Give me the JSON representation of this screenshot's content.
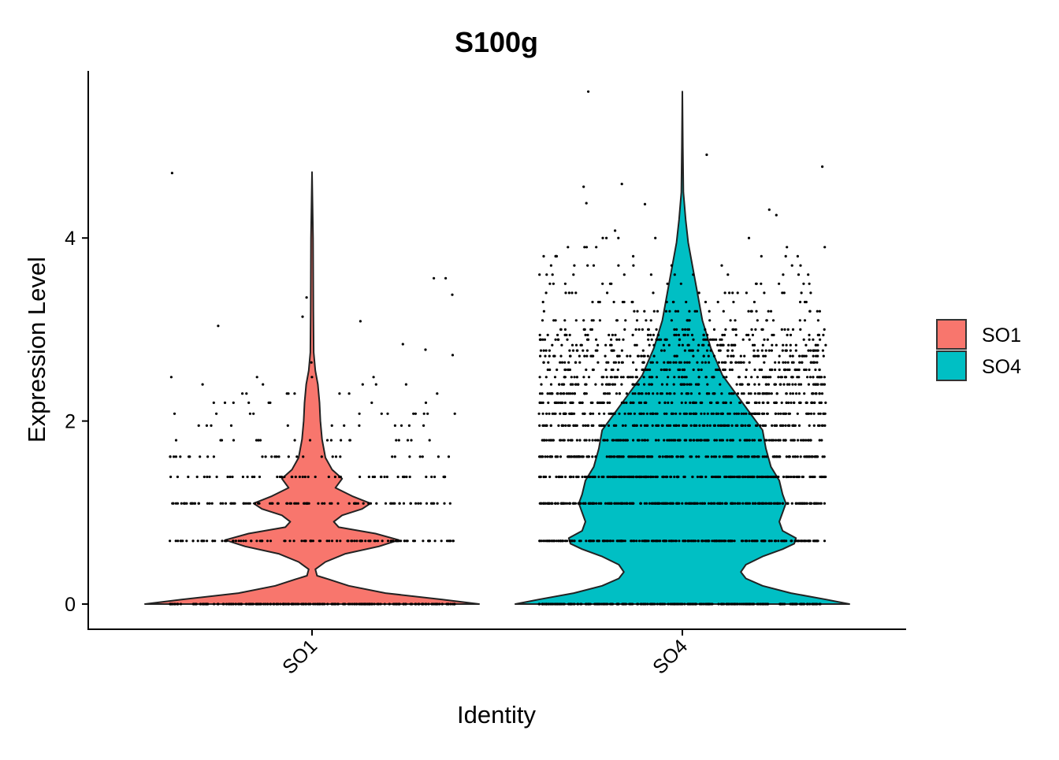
{
  "chart_data": {
    "type": "violin",
    "title": "S100g",
    "xlabel": "Identity",
    "ylabel": "Expression Level",
    "ylim": [
      -0.28,
      5.75
    ],
    "y_ticks": [
      0,
      2,
      4
    ],
    "categories": [
      "SO1",
      "SO4"
    ],
    "legend": {
      "position": "right",
      "entries": [
        {
          "label": "SO1",
          "color": "#F8766D"
        },
        {
          "label": "SO4",
          "color": "#00BFC4"
        }
      ]
    },
    "grid": false,
    "jittered_points": true,
    "series": [
      {
        "name": "SO1",
        "color": "#F8766D",
        "density": [
          [
            0.0,
            1.0
          ],
          [
            0.05,
            0.78
          ],
          [
            0.12,
            0.44
          ],
          [
            0.2,
            0.22
          ],
          [
            0.27,
            0.1
          ],
          [
            0.31,
            0.03
          ],
          [
            0.38,
            0.02
          ],
          [
            0.46,
            0.08
          ],
          [
            0.55,
            0.2
          ],
          [
            0.63,
            0.4
          ],
          [
            0.7,
            0.52
          ],
          [
            0.77,
            0.38
          ],
          [
            0.84,
            0.16
          ],
          [
            0.9,
            0.13
          ],
          [
            0.97,
            0.18
          ],
          [
            1.04,
            0.3
          ],
          [
            1.1,
            0.35
          ],
          [
            1.18,
            0.24
          ],
          [
            1.27,
            0.14
          ],
          [
            1.37,
            0.18
          ],
          [
            1.47,
            0.12
          ],
          [
            1.6,
            0.08
          ],
          [
            1.8,
            0.06
          ],
          [
            2.0,
            0.05
          ],
          [
            2.2,
            0.045
          ],
          [
            2.4,
            0.035
          ],
          [
            2.55,
            0.02
          ],
          [
            2.75,
            0.01
          ],
          [
            3.2,
            0.008
          ],
          [
            4.0,
            0.006
          ],
          [
            4.72,
            0.0
          ]
        ],
        "points": {
          "0": 230,
          "0.69": 110,
          "1.1": 90,
          "1.39": 55,
          "1.61": 30,
          "1.79": 20,
          "1.95": 12,
          "2.08": 12,
          "2.2": 8,
          "2.3": 8,
          "2.4": 5,
          "2.48": 4,
          "other": [
            2.64,
            2.72,
            2.78,
            2.84,
            3.04,
            3.09,
            3.14,
            3.35,
            3.38,
            3.56,
            3.56,
            4.71
          ]
        }
      },
      {
        "name": "SO4",
        "color": "#00BFC4",
        "density": [
          [
            0.0,
            1.0
          ],
          [
            0.05,
            0.86
          ],
          [
            0.12,
            0.65
          ],
          [
            0.2,
            0.48
          ],
          [
            0.28,
            0.38
          ],
          [
            0.35,
            0.35
          ],
          [
            0.43,
            0.38
          ],
          [
            0.52,
            0.48
          ],
          [
            0.6,
            0.6
          ],
          [
            0.66,
            0.67
          ],
          [
            0.72,
            0.68
          ],
          [
            0.8,
            0.6
          ],
          [
            0.9,
            0.58
          ],
          [
            1.0,
            0.6
          ],
          [
            1.1,
            0.62
          ],
          [
            1.2,
            0.6
          ],
          [
            1.35,
            0.58
          ],
          [
            1.5,
            0.53
          ],
          [
            1.7,
            0.5
          ],
          [
            1.9,
            0.48
          ],
          [
            2.1,
            0.4
          ],
          [
            2.3,
            0.32
          ],
          [
            2.5,
            0.24
          ],
          [
            2.8,
            0.17
          ],
          [
            3.1,
            0.12
          ],
          [
            3.4,
            0.09
          ],
          [
            3.7,
            0.06
          ],
          [
            3.95,
            0.035
          ],
          [
            4.2,
            0.02
          ],
          [
            4.5,
            0.006
          ],
          [
            5.0,
            0.003
          ],
          [
            5.6,
            0.0
          ]
        ],
        "points": {
          "0": 260,
          "0.69": 240,
          "1.1": 240,
          "1.39": 200,
          "1.61": 175,
          "1.79": 150,
          "1.95": 130,
          "2.08": 130,
          "2.2": 110,
          "2.3": 100,
          "2.4": 90,
          "2.48": 80,
          "2.56": 75,
          "2.64": 70,
          "2.71": 60,
          "2.77": 55,
          "2.83": 50,
          "2.89": 45,
          "2.94": 42,
          "3.0": 36,
          "3.1": 30,
          "3.2": 25,
          "3.3": 20,
          "3.4": 18,
          "3.5": 14,
          "3.6": 12,
          "3.7": 10,
          "3.8": 8,
          "3.9": 6,
          "4.0": 5,
          "other": [
            4.08,
            4.25,
            4.31,
            4.37,
            4.38,
            4.56,
            4.59,
            4.78,
            4.91,
            5.6
          ]
        }
      }
    ]
  }
}
